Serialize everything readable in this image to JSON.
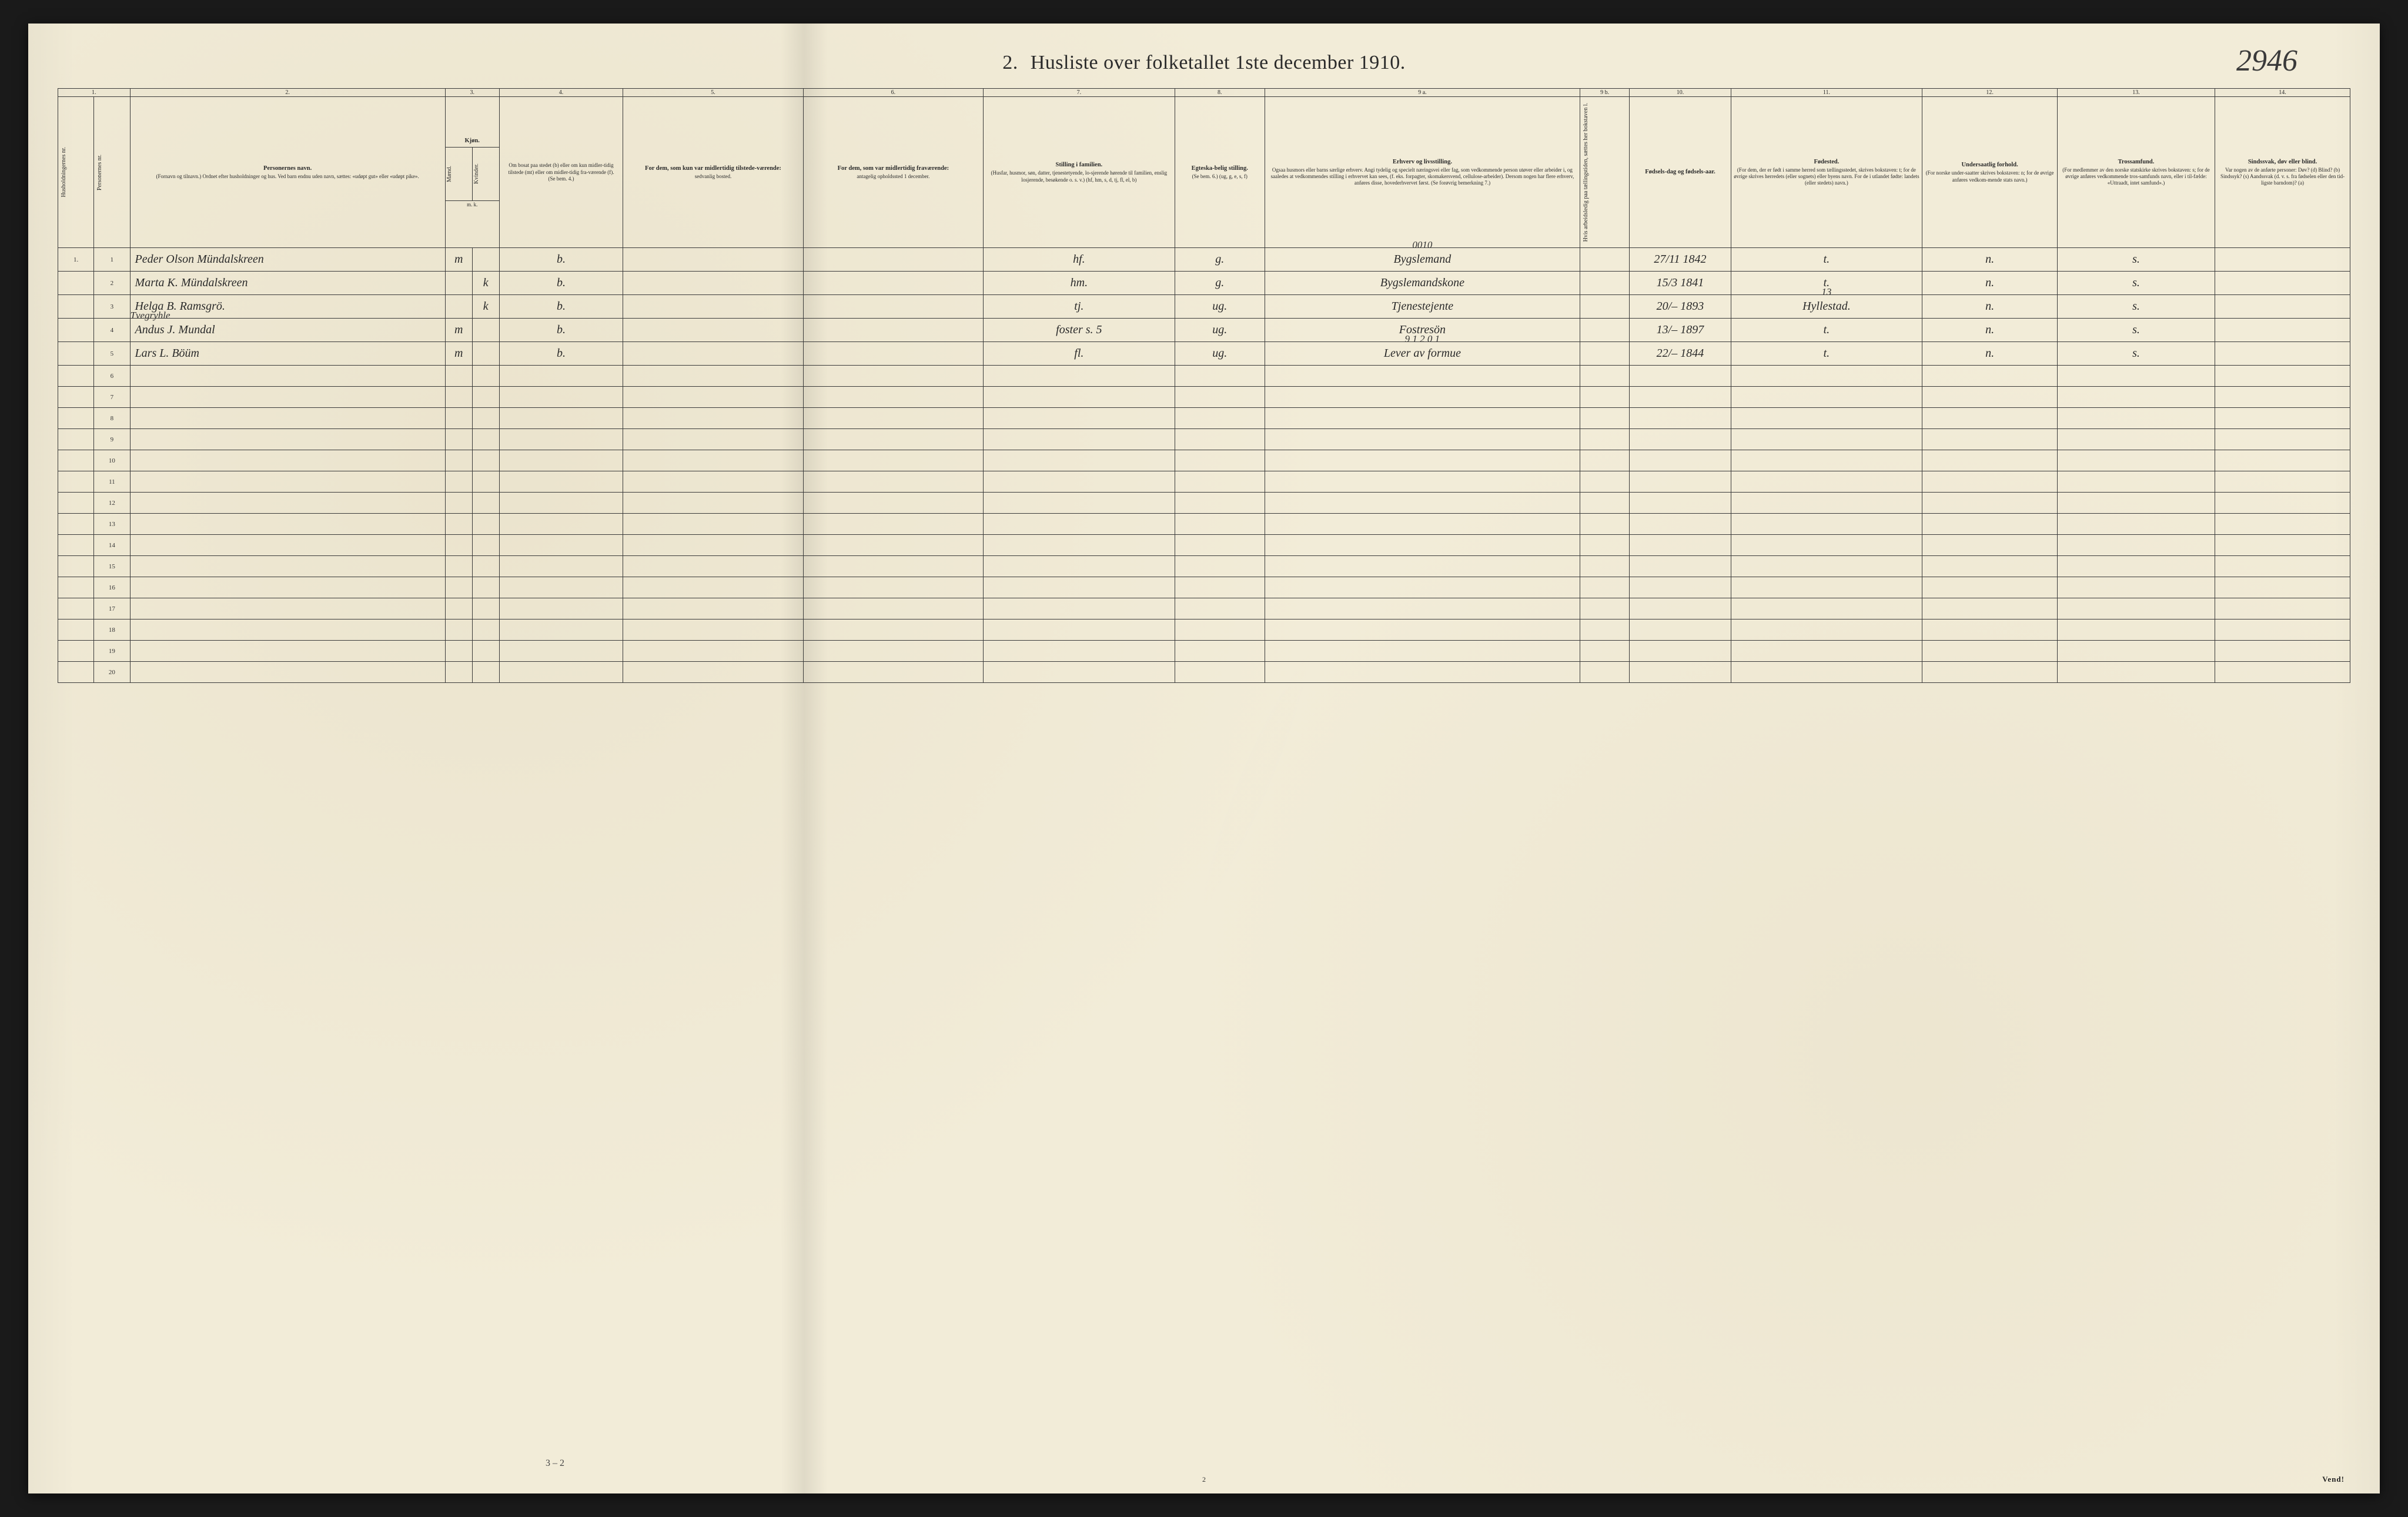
{
  "corner_number": "2946",
  "title_prefix": "2.",
  "title_text": "Husliste over folketallet 1ste december 1910.",
  "footer_page": "2",
  "footer_vend": "Vend!",
  "bottom_annotation": "3 – 2",
  "colnums": [
    "1.",
    "2.",
    "3.",
    "4.",
    "5.",
    "6.",
    "7.",
    "8.",
    "9 a.",
    "9 b.",
    "10.",
    "11.",
    "12.",
    "13.",
    "14."
  ],
  "headers": {
    "c1a": "Husholdningernes nr.",
    "c1b": "Personernes nr.",
    "c2_main": "Personernes navn.",
    "c2_sub": "(Fornavn og tilnavn.)\nOrdnet efter husholdninger og hus.\nVed barn endnu uden navn, sættes: «udøpt gut» eller «udøpt pike».",
    "c3_main": "Kjøn.",
    "c3_m": "Mænd.",
    "c3_k": "Kvinder.",
    "c3_mk": "m.  k.",
    "c4_main": "Om bosat paa stedet (b) eller om kun midler-tidig tilstede (mt) eller om midler-tidig fra-værende (f).",
    "c4_sub": "(Se bem. 4.)",
    "c5_main": "For dem, som kun var midlertidig tilstede-værende:",
    "c5_sub": "sedvanlig bosted.",
    "c6_main": "For dem, som var midlertidig fraværende:",
    "c6_sub": "antagelig opholdssted 1 december.",
    "c7_main": "Stilling i familien.",
    "c7_sub": "(Husfar, husmor, søn, datter, tjenestetyende, lo-sjerende hørende til familien, enslig losjerende, besøkende o. s. v.)\n(hf, hm, s, d, tj, fl, el, b)",
    "c8_main": "Egteska-belig stilling.",
    "c8_sub": "(Se bem. 6.)\n(ug, g, e, s, f)",
    "c9a_main": "Erhverv og livsstilling.",
    "c9a_sub": "Ogsaa husmors eller barns særlige erhverv. Angi tydelig og specielt næringsvei eller fag, som vedkommende person utøver eller arbeider i, og saaledes at vedkommendes stilling i erhvervet kan sees, (f. eks. forpagter, skomakersvend, cellulose-arbeider). Dersom nogen har flere erhverv, anføres disse, hovederhvervet først.\n(Se forøvrig bemerkning 7.)",
    "c9b": "Hvis arbeidsledig paa tællingstiden, sættes her bokstaven l.",
    "c10_main": "Fødsels-dag og fødsels-aar.",
    "c11_main": "Fødested.",
    "c11_sub": "(For dem, der er født i samme herred som tællingsstedet, skrives bokstaven: t; for de øvrige skrives herredets (eller sognets) eller byens navn. For de i utlandet fødte: landets (eller stedets) navn.)",
    "c12_main": "Undersaatlig forhold.",
    "c12_sub": "(For norske under-saatter skrives bokstaven: n; for de øvrige anføres vedkom-mende stats navn.)",
    "c13_main": "Trossamfund.",
    "c13_sub": "(For medlemmer av den norske statskirke skrives bokstaven: s; for de øvrige anføres vedkommende tros-samfunds navn, eller i til-fælde: «Uttraadt, intet samfund».)",
    "c14_main": "Sindssvak, døv eller blind.",
    "c14_sub": "Var nogen av de anførte personer:\nDøv? (d)\nBlind? (b)\nSindssyk? (s)\nAandssvak (d. v. s. fra fødselen eller den tid-ligste barndom)? (a)"
  },
  "rows": [
    {
      "hh": "1.",
      "pn": "1",
      "name": "Peder Olson Mündalskreen",
      "m": "m",
      "k": "",
      "res": "b.",
      "c5": "",
      "c6": "",
      "c7": "hf.",
      "c8": "g.",
      "c9a": "Bygslemand",
      "c9a_over": "0010",
      "c9b": "",
      "c10": "27/11 1842",
      "c11": "t.",
      "c12": "n.",
      "c13": "s.",
      "c14": ""
    },
    {
      "hh": "",
      "pn": "2",
      "name": "Marta K. Mündalskreen",
      "m": "",
      "k": "k",
      "res": "b.",
      "c5": "",
      "c6": "",
      "c7": "hm.",
      "c8": "g.",
      "c9a": "Bygslemandskone",
      "c9a_over": "",
      "c9b": "",
      "c10": "15/3 1841",
      "c11": "t.",
      "c12": "n.",
      "c13": "s.",
      "c14": ""
    },
    {
      "hh": "",
      "pn": "3",
      "name": "Helga B. Ramsgrö.",
      "m": "",
      "k": "k",
      "res": "b.",
      "c5": "",
      "c6": "",
      "c7": "tj.",
      "c8": "ug.",
      "c9a": "Tjenestejente",
      "c9a_over": "",
      "c9b": "",
      "c10": "20/– 1893",
      "c11": "Hyllestad.",
      "c11_over": "13",
      "c12": "n.",
      "c13": "s.",
      "c14": ""
    },
    {
      "hh": "",
      "pn": "4",
      "name": "Andus J. Mundal",
      "name_over": "Tvegryhle",
      "m": "m",
      "k": "",
      "res": "b.",
      "c5": "",
      "c6": "",
      "c7": "foster s.   5",
      "c8": "ug.",
      "c9a": "Fostresön",
      "c9a_over": "",
      "c9b": "",
      "c10": "13/– 1897",
      "c11": "t.",
      "c12": "n.",
      "c13": "s.",
      "c14": ""
    },
    {
      "hh": "",
      "pn": "5",
      "name": "Lars L. Böüm",
      "m": "m",
      "k": "",
      "res": "b.",
      "c5": "",
      "c6": "",
      "c7": "fl.",
      "c8": "ug.",
      "c9a": "Lever av formue",
      "c9a_over": "9 1 2 0 1",
      "c9b": "",
      "c10": "22/– 1844",
      "c11": "t.",
      "c12": "n.",
      "c13": "s.",
      "c14": ""
    }
  ],
  "empty_rows": [
    "6",
    "7",
    "8",
    "9",
    "10",
    "11",
    "12",
    "13",
    "14",
    "15",
    "16",
    "17",
    "18",
    "19",
    "20"
  ],
  "colors": {
    "paper": "#f2ecd8",
    "ink": "#2a2a2a",
    "border": "#3a3a3a",
    "page_bg": "#1a1a1a"
  }
}
